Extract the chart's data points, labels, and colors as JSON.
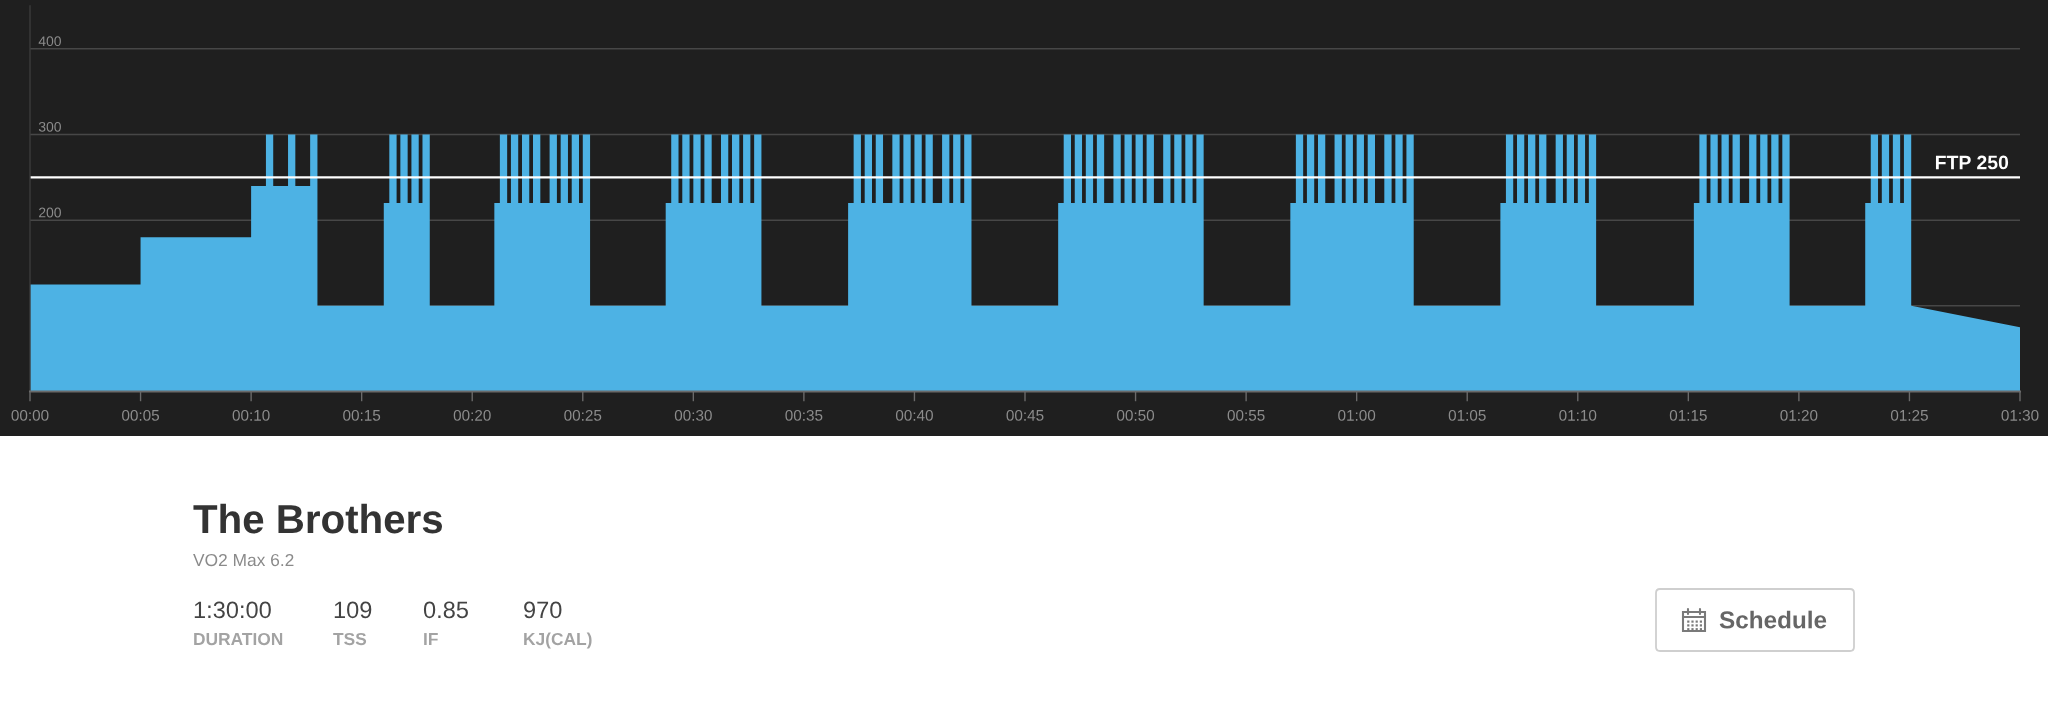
{
  "chart_data": [
    {
      "type": "area",
      "color": "#4db2e4",
      "x": [
        0,
        5,
        5,
        10,
        10,
        10.67,
        10.67,
        11,
        11,
        11.67,
        11.67,
        12,
        12,
        12.67,
        12.67,
        13,
        13,
        16,
        16,
        16.25,
        16.25,
        16.58,
        16.58,
        16.75,
        16.75,
        17.08,
        17.08,
        17.25,
        17.25,
        17.58,
        17.58,
        17.75,
        17.75,
        18.08,
        18.08,
        21,
        21,
        21.25,
        21.25,
        21.58,
        21.58,
        21.75,
        21.75,
        22.08,
        22.08,
        22.25,
        22.25,
        22.58,
        22.58,
        22.75,
        22.75,
        23.08,
        23.08,
        23.5,
        23.5,
        23.83,
        23.83,
        24,
        24,
        24.33,
        24.33,
        24.5,
        24.5,
        24.83,
        24.83,
        25,
        25,
        25.33,
        25.33,
        28.75,
        28.75,
        29,
        29,
        29.33,
        29.33,
        29.5,
        29.5,
        29.83,
        29.83,
        30,
        30,
        30.33,
        30.33,
        30.5,
        30.5,
        30.83,
        30.83,
        31.25,
        31.25,
        31.58,
        31.58,
        31.75,
        31.75,
        32.08,
        32.08,
        32.25,
        32.25,
        32.58,
        32.58,
        32.75,
        32.75,
        33.08,
        33.08,
        37,
        37,
        37.25,
        37.25,
        37.58,
        37.58,
        37.75,
        37.75,
        38.08,
        38.08,
        38.25,
        38.25,
        38.58,
        38.58,
        39,
        39,
        39.33,
        39.33,
        39.5,
        39.5,
        39.83,
        39.83,
        40,
        40,
        40.33,
        40.33,
        40.5,
        40.5,
        40.83,
        40.83,
        41.25,
        41.25,
        41.58,
        41.58,
        41.75,
        41.75,
        42.08,
        42.08,
        42.25,
        42.25,
        42.58,
        42.58,
        46.5,
        46.5,
        46.75,
        46.75,
        47.08,
        47.08,
        47.25,
        47.25,
        47.58,
        47.58,
        47.75,
        47.75,
        48.08,
        48.08,
        48.25,
        48.25,
        48.58,
        48.58,
        49,
        49,
        49.33,
        49.33,
        49.5,
        49.5,
        49.83,
        49.83,
        50,
        50,
        50.33,
        50.33,
        50.5,
        50.5,
        50.83,
        50.83,
        51.25,
        51.25,
        51.58,
        51.58,
        51.75,
        51.75,
        52.08,
        52.08,
        52.25,
        52.25,
        52.58,
        52.58,
        52.75,
        52.75,
        53.08,
        53.08,
        57,
        57,
        57.25,
        57.25,
        57.58,
        57.58,
        57.75,
        57.75,
        58.08,
        58.08,
        58.25,
        58.25,
        58.58,
        58.58,
        59,
        59,
        59.33,
        59.33,
        59.5,
        59.5,
        59.83,
        59.83,
        60,
        60,
        60.33,
        60.33,
        60.5,
        60.5,
        60.83,
        60.83,
        61.25,
        61.25,
        61.58,
        61.58,
        61.75,
        61.75,
        62.08,
        62.08,
        62.25,
        62.25,
        62.58,
        62.58,
        66.5,
        66.5,
        66.75,
        66.75,
        67.08,
        67.08,
        67.25,
        67.25,
        67.58,
        67.58,
        67.75,
        67.75,
        68.08,
        68.08,
        68.25,
        68.25,
        68.58,
        68.58,
        69,
        69,
        69.33,
        69.33,
        69.5,
        69.5,
        69.83,
        69.83,
        70,
        70,
        70.33,
        70.33,
        70.5,
        70.5,
        70.83,
        70.83,
        75.25,
        75.25,
        75.5,
        75.5,
        75.83,
        75.83,
        76,
        76,
        76.33,
        76.33,
        76.5,
        76.5,
        76.83,
        76.83,
        77,
        77,
        77.33,
        77.33,
        77.75,
        77.75,
        78.08,
        78.08,
        78.25,
        78.25,
        78.58,
        78.58,
        78.75,
        78.75,
        79.08,
        79.08,
        79.25,
        79.25,
        79.58,
        79.58,
        83,
        83,
        83.25,
        83.25,
        83.58,
        83.58,
        83.75,
        83.75,
        84.08,
        84.08,
        84.25,
        84.25,
        84.58,
        84.58,
        84.75,
        84.75,
        85.08,
        85.08,
        90
      ],
      "values": [
        125,
        125,
        180,
        180,
        240,
        240,
        300,
        300,
        240,
        240,
        300,
        300,
        240,
        240,
        300,
        300,
        100,
        100,
        220,
        220,
        300,
        300,
        220,
        220,
        300,
        300,
        220,
        220,
        300,
        300,
        220,
        220,
        300,
        300,
        100,
        100,
        220,
        220,
        300,
        300,
        220,
        220,
        300,
        300,
        220,
        220,
        300,
        300,
        220,
        220,
        300,
        300,
        220,
        220,
        300,
        300,
        220,
        220,
        300,
        300,
        220,
        220,
        300,
        300,
        220,
        220,
        300,
        300,
        100,
        100,
        220,
        220,
        300,
        300,
        220,
        220,
        300,
        300,
        220,
        220,
        300,
        300,
        220,
        220,
        300,
        300,
        220,
        220,
        300,
        300,
        220,
        220,
        300,
        300,
        220,
        220,
        300,
        300,
        220,
        220,
        300,
        300,
        100,
        100,
        220,
        220,
        300,
        300,
        220,
        220,
        300,
        300,
        220,
        220,
        300,
        300,
        220,
        220,
        300,
        300,
        220,
        220,
        300,
        300,
        220,
        220,
        300,
        300,
        220,
        220,
        300,
        300,
        220,
        220,
        300,
        300,
        220,
        220,
        300,
        300,
        220,
        220,
        300,
        300,
        100,
        100,
        220,
        220,
        300,
        300,
        220,
        220,
        300,
        300,
        220,
        220,
        300,
        300,
        220,
        220,
        300,
        300,
        220,
        220,
        300,
        300,
        220,
        220,
        300,
        300,
        220,
        220,
        300,
        300,
        220,
        220,
        300,
        300,
        220,
        220,
        300,
        300,
        220,
        220,
        300,
        300,
        220,
        220,
        300,
        300,
        220,
        220,
        300,
        300,
        100,
        100,
        220,
        220,
        300,
        300,
        220,
        220,
        300,
        300,
        220,
        220,
        300,
        300,
        220,
        220,
        300,
        300,
        220,
        220,
        300,
        300,
        220,
        220,
        300,
        300,
        220,
        220,
        300,
        300,
        220,
        220,
        300,
        300,
        220,
        220,
        300,
        300,
        220,
        220,
        300,
        300,
        100,
        100,
        220,
        220,
        300,
        300,
        220,
        220,
        300,
        300,
        220,
        220,
        300,
        300,
        220,
        220,
        300,
        300,
        220,
        220,
        300,
        300,
        220,
        220,
        300,
        300,
        220,
        220,
        300,
        300,
        220,
        220,
        300,
        300,
        100,
        100,
        220,
        220,
        300,
        300,
        220,
        220,
        300,
        300,
        220,
        220,
        300,
        300,
        220,
        220,
        300,
        300,
        220,
        220,
        300,
        300,
        220,
        220,
        300,
        300,
        220,
        220,
        300,
        300,
        220,
        220,
        300,
        300,
        100,
        100,
        220,
        220,
        300,
        300,
        220,
        220,
        300,
        300,
        220,
        220,
        300,
        300,
        220,
        220,
        300,
        300,
        100,
        75
      ],
      "xlim": [
        0,
        90
      ],
      "ylim": [
        0,
        450
      ],
      "xticks": [
        {
          "value": 0,
          "label": "00:00"
        },
        {
          "value": 5,
          "label": "00:05"
        },
        {
          "value": 10,
          "label": "00:10"
        },
        {
          "value": 15,
          "label": "00:15"
        },
        {
          "value": 20,
          "label": "00:20"
        },
        {
          "value": 25,
          "label": "00:25"
        },
        {
          "value": 30,
          "label": "00:30"
        },
        {
          "value": 35,
          "label": "00:35"
        },
        {
          "value": 40,
          "label": "00:40"
        },
        {
          "value": 45,
          "label": "00:45"
        },
        {
          "value": 50,
          "label": "00:50"
        },
        {
          "value": 55,
          "label": "00:55"
        },
        {
          "value": 60,
          "label": "01:00"
        },
        {
          "value": 65,
          "label": "01:05"
        },
        {
          "value": 70,
          "label": "01:10"
        },
        {
          "value": 75,
          "label": "01:15"
        },
        {
          "value": 80,
          "label": "01:20"
        },
        {
          "value": 85,
          "label": "01:25"
        },
        {
          "value": 90,
          "label": "01:30"
        }
      ],
      "yticks": [
        {
          "value": 100,
          "label": null
        },
        200,
        300,
        400
      ],
      "grid": "y",
      "ref_lines": [
        {
          "axis": "y",
          "value": 250,
          "label": "FTP 250",
          "color": "#ffffff"
        }
      ]
    },
    {
      "type": "other",
      "title": "The Brothers",
      "subtitle": "VO2 Max 6.2",
      "annotations": [
        "1:30:00",
        "DURATION",
        "109",
        "TSS",
        "0.85",
        "IF",
        "970",
        "KJ(CAL)",
        "Schedule"
      ]
    }
  ]
}
